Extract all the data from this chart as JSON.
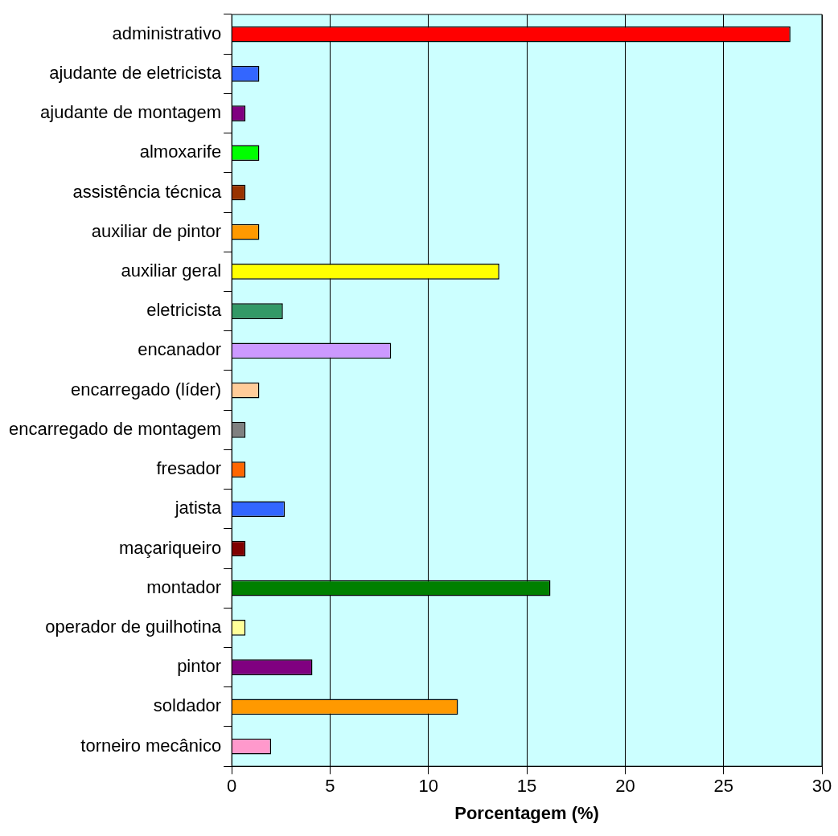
{
  "chart_data": {
    "type": "bar",
    "orientation": "horizontal",
    "xlabel": "Porcentagem (%)",
    "categories": [
      "administrativo",
      "ajudante de eletricista",
      "ajudante de montagem",
      "almoxarife",
      "assistência técnica",
      "auxiliar de pintor",
      "auxiliar geral",
      "eletricista",
      "encanador",
      "encarregado (líder)",
      "encarregado de montagem",
      "fresador",
      "jatista",
      "maçariqueiro",
      "montador",
      "operador de guilhotina",
      "pintor",
      "soldador",
      "torneiro mecânico"
    ],
    "values": [
      28.4,
      1.4,
      0.7,
      1.4,
      0.7,
      1.4,
      13.6,
      2.6,
      8.1,
      1.4,
      0.7,
      0.7,
      2.7,
      0.7,
      16.2,
      0.7,
      4.1,
      11.5,
      2.0
    ],
    "colors": [
      "#ff0000",
      "#3366ff",
      "#800080",
      "#00ff00",
      "#993300",
      "#ff9900",
      "#ffff00",
      "#339966",
      "#cc99ff",
      "#ffcc99",
      "#808080",
      "#ff6600",
      "#3366ff",
      "#800000",
      "#008000",
      "#ffff99",
      "#800080",
      "#ff9900",
      "#ff99cc"
    ],
    "xlim": [
      0,
      30
    ],
    "xticks": [
      0,
      5,
      10,
      15,
      20,
      25,
      30
    ],
    "grid": "x",
    "legend": false
  }
}
